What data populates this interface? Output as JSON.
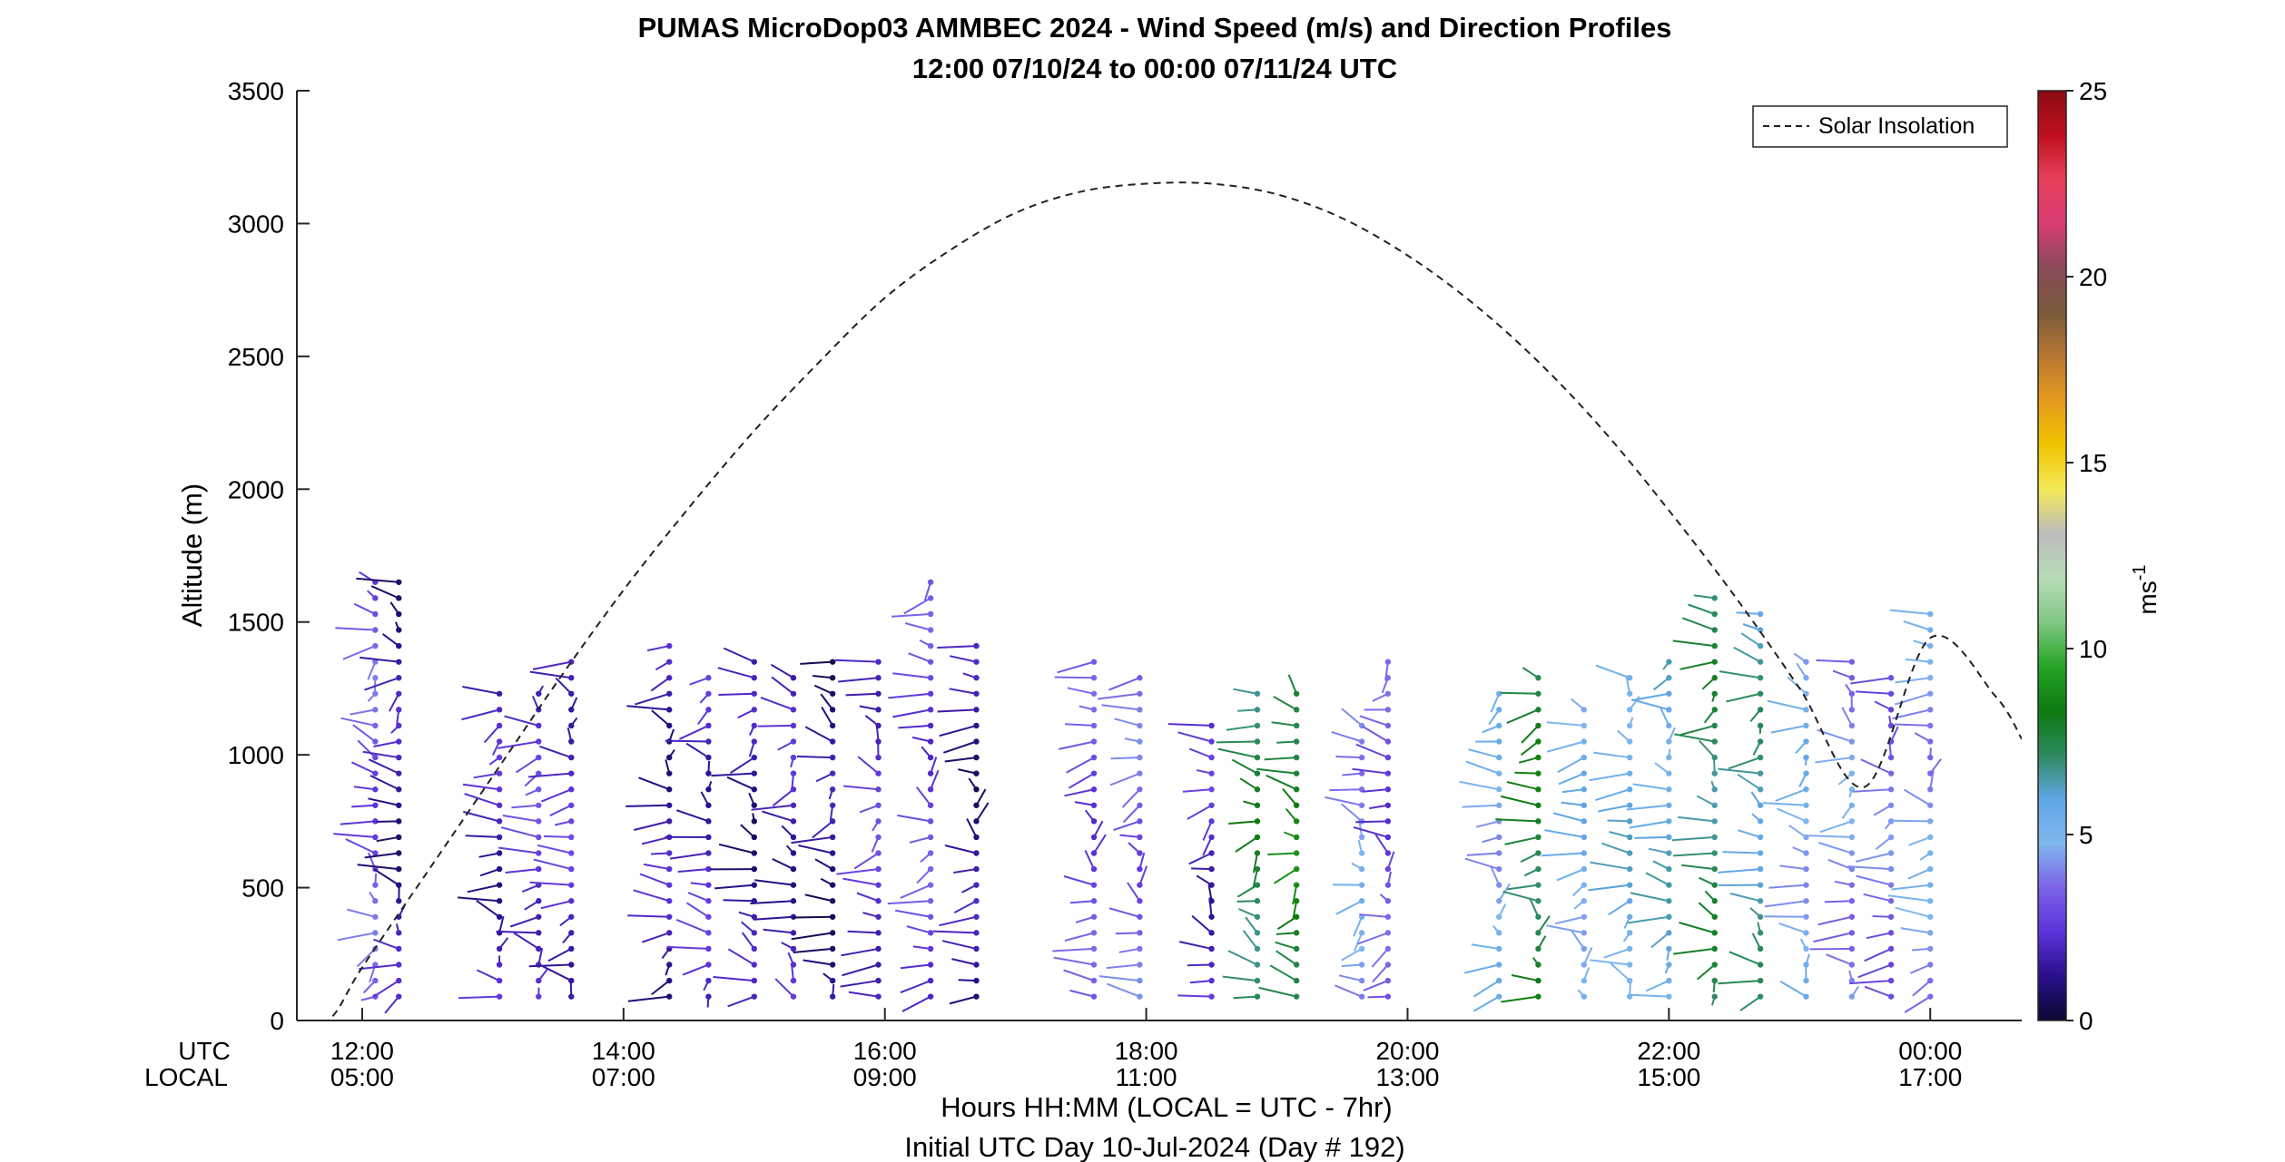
{
  "chart_data": {
    "type": "scatter",
    "title": "PUMAS MicroDop03 AMMBEC 2024 - Wind Speed (m/s) and Direction Profiles",
    "subtitle": "12:00 07/10/24 to 00:00 07/11/24  UTC",
    "ylabel": "Altitude (m)",
    "ylim": [
      0,
      3500
    ],
    "yticks": [
      "0",
      "500",
      "1000",
      "1500",
      "2000",
      "2500",
      "3000",
      "3500"
    ],
    "xlim_utc_hours": [
      11.5,
      24.7
    ],
    "xticks_utc": [
      "12:00",
      "14:00",
      "16:00",
      "18:00",
      "20:00",
      "22:00",
      "00:00"
    ],
    "xticks_local": [
      "05:00",
      "07:00",
      "09:00",
      "11:00",
      "13:00",
      "15:00",
      "17:00"
    ],
    "xtick_row_labels": [
      "UTC",
      "LOCAL"
    ],
    "xlabel": "Hours HH:MM  (LOCAL = UTC - 7hr)",
    "xlabel2": "Initial UTC Day 10-Jul-2024 (Day # 192)",
    "legend": {
      "entry": "Solar Insolation",
      "placement": "top-right"
    },
    "colorbar": {
      "label_base": "ms",
      "label_exp": "-1",
      "range": [
        0,
        25
      ],
      "ticks": [
        "0",
        "5",
        "10",
        "15",
        "20",
        "25"
      ]
    },
    "solar_insolation_curve": {
      "x_utc_hours": [
        11.5,
        11.75,
        12.0,
        12.5,
        13.0,
        13.5,
        14.0,
        14.5,
        15.0,
        15.5,
        16.0,
        16.5,
        17.0,
        17.5,
        18.0,
        18.5,
        19.0,
        19.5,
        20.0,
        20.5,
        21.0,
        21.5,
        22.0,
        22.5,
        23.0,
        23.5,
        24.0,
        24.5,
        24.7
      ],
      "altitude_m": [
        0,
        5,
        200,
        560,
        920,
        1280,
        1620,
        1930,
        2220,
        2480,
        2720,
        2900,
        3040,
        3120,
        3150,
        3150,
        3110,
        3020,
        2880,
        2700,
        2480,
        2220,
        1920,
        1600,
        1250,
        880,
        1440,
        1220,
        1060
      ]
    },
    "profiles": [
      {
        "utc": 12.1,
        "bottom_m": 90,
        "top_m": 1690,
        "speed_ms": 3.2
      },
      {
        "utc": 12.28,
        "bottom_m": 90,
        "top_m": 1650,
        "speed_ms": 1.5
      },
      {
        "utc": 13.05,
        "bottom_m": 90,
        "top_m": 1230,
        "speed_ms": 1.8
      },
      {
        "utc": 13.35,
        "bottom_m": 90,
        "top_m": 1230,
        "speed_ms": 2.5
      },
      {
        "utc": 13.6,
        "bottom_m": 90,
        "top_m": 1350,
        "speed_ms": 2.2
      },
      {
        "utc": 14.35,
        "bottom_m": 90,
        "top_m": 1430,
        "speed_ms": 1.6
      },
      {
        "utc": 14.65,
        "bottom_m": 90,
        "top_m": 1330,
        "speed_ms": 2.0
      },
      {
        "utc": 15.0,
        "bottom_m": 90,
        "top_m": 1350,
        "speed_ms": 1.4
      },
      {
        "utc": 15.3,
        "bottom_m": 90,
        "top_m": 1330,
        "speed_ms": 1.8
      },
      {
        "utc": 15.6,
        "bottom_m": 90,
        "top_m": 1390,
        "speed_ms": 1.2
      },
      {
        "utc": 15.95,
        "bottom_m": 90,
        "top_m": 1390,
        "speed_ms": 2.4
      },
      {
        "utc": 16.35,
        "bottom_m": 90,
        "top_m": 1650,
        "speed_ms": 2.8
      },
      {
        "utc": 16.7,
        "bottom_m": 90,
        "top_m": 1450,
        "speed_ms": 1.3
      },
      {
        "utc": 17.6,
        "bottom_m": 90,
        "top_m": 1350,
        "speed_ms": 2.9
      },
      {
        "utc": 17.95,
        "bottom_m": 90,
        "top_m": 1290,
        "speed_ms": 3.4
      },
      {
        "utc": 18.5,
        "bottom_m": 90,
        "top_m": 1110,
        "speed_ms": 2.1
      },
      {
        "utc": 18.85,
        "bottom_m": 90,
        "top_m": 1230,
        "speed_ms": 7.5
      },
      {
        "utc": 19.15,
        "bottom_m": 90,
        "top_m": 1230,
        "speed_ms": 8.2
      },
      {
        "utc": 19.65,
        "bottom_m": 90,
        "top_m": 1110,
        "speed_ms": 4.5
      },
      {
        "utc": 19.85,
        "bottom_m": 90,
        "top_m": 1370,
        "speed_ms": 3.0
      },
      {
        "utc": 20.7,
        "bottom_m": 90,
        "top_m": 1230,
        "speed_ms": 4.8
      },
      {
        "utc": 21.0,
        "bottom_m": 90,
        "top_m": 1290,
        "speed_ms": 7.8
      },
      {
        "utc": 21.35,
        "bottom_m": 90,
        "top_m": 1170,
        "speed_ms": 5.2
      },
      {
        "utc": 21.7,
        "bottom_m": 90,
        "top_m": 1290,
        "speed_ms": 5.6
      },
      {
        "utc": 22.0,
        "bottom_m": 90,
        "top_m": 1390,
        "speed_ms": 5.8
      },
      {
        "utc": 22.35,
        "bottom_m": 90,
        "top_m": 1630,
        "speed_ms": 7.2
      },
      {
        "utc": 22.7,
        "bottom_m": 90,
        "top_m": 1550,
        "speed_ms": 6.5
      },
      {
        "utc": 23.05,
        "bottom_m": 90,
        "top_m": 1370,
        "speed_ms": 4.9
      },
      {
        "utc": 23.4,
        "bottom_m": 90,
        "top_m": 1370,
        "speed_ms": 4.2
      },
      {
        "utc": 23.7,
        "bottom_m": 90,
        "top_m": 1330,
        "speed_ms": 3.6
      },
      {
        "utc": 24.0,
        "bottom_m": 90,
        "top_m": 1530,
        "speed_ms": 4.4
      }
    ],
    "grid": false
  },
  "colors": {
    "insolation": "#222222",
    "axis": "#262626",
    "colormap": [
      "#0b0933",
      "#2a0f8c",
      "#5b32d9",
      "#7c62e8",
      "#7fb6ee",
      "#60a6e6",
      "#2c8a5e",
      "#0e7a10",
      "#26a526",
      "#82c885",
      "#b7dcb7",
      "#bcbcbc",
      "#f5ea5a",
      "#f0c400",
      "#e69a1e",
      "#b87832",
      "#7a5a3a",
      "#8a4a5a",
      "#d93c74",
      "#e8405a",
      "#c0101e",
      "#8b0a14"
    ]
  }
}
